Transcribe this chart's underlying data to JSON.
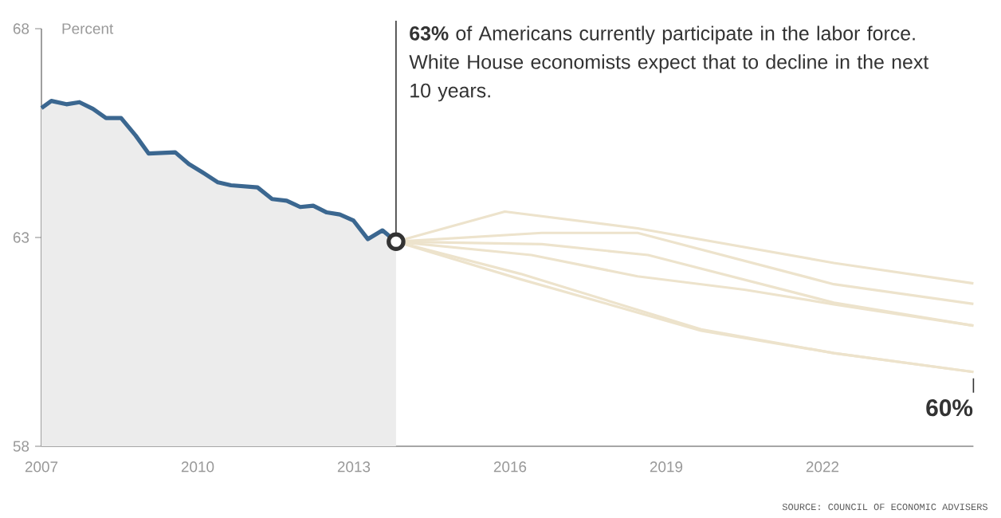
{
  "chart_data": {
    "type": "line",
    "ylabel": "Percent",
    "xlim": [
      2007,
      2024.9
    ],
    "ylim": [
      58,
      68
    ],
    "xticks": [
      2007,
      2010,
      2013,
      2016,
      2019,
      2022
    ],
    "yticks": [
      58,
      63,
      68
    ],
    "series": [
      {
        "type": "area",
        "color": "#3b6790",
        "x": [
          2007.0,
          2007.19,
          2007.48,
          2007.73,
          2007.99,
          2008.24,
          2008.53,
          2008.81,
          2009.06,
          2009.57,
          2009.83,
          2010.08,
          2010.39,
          2010.64,
          2011.15,
          2011.43,
          2011.71,
          2011.97,
          2012.22,
          2012.48,
          2012.73,
          2012.99,
          2013.27,
          2013.55,
          2013.81
        ],
        "values": [
          66.1,
          66.27,
          66.19,
          66.24,
          66.08,
          65.86,
          65.86,
          65.44,
          65.01,
          65.04,
          64.76,
          64.57,
          64.32,
          64.25,
          64.2,
          63.92,
          63.88,
          63.73,
          63.76,
          63.6,
          63.55,
          63.41,
          62.96,
          63.17,
          62.9
        ]
      },
      {
        "color": "#ede3cc",
        "x": [
          2013.81,
          2015.9,
          2018.45,
          2022.22,
          2024.9
        ],
        "values": [
          62.9,
          63.62,
          63.22,
          62.39,
          61.9
        ]
      },
      {
        "color": "#ede3cc",
        "x": [
          2013.81,
          2016.61,
          2018.45,
          2022.22,
          2024.9
        ],
        "values": [
          62.9,
          63.11,
          63.11,
          61.88,
          61.41
        ]
      },
      {
        "color": "#ede3cc",
        "x": [
          2013.81,
          2016.61,
          2018.65,
          2022.22,
          2024.9
        ],
        "values": [
          62.9,
          62.84,
          62.58,
          61.44,
          60.89
        ]
      },
      {
        "color": "#ede3cc",
        "x": [
          2013.81,
          2016.41,
          2018.45,
          2020.5,
          2022.22,
          2024.9
        ],
        "values": [
          62.9,
          62.58,
          62.07,
          61.75,
          61.4,
          60.89
        ]
      },
      {
        "color": "#ede3cc",
        "x": [
          2013.81,
          2016.2,
          2019.67,
          2022.22,
          2024.9
        ],
        "values": [
          62.9,
          62.13,
          60.8,
          60.23,
          59.78
        ]
      },
      {
        "color": "#ede3cc",
        "x": [
          2013.81,
          2016.2,
          2019.67,
          2022.22,
          2024.9
        ],
        "values": [
          62.9,
          62.0,
          60.77,
          60.23,
          59.78
        ]
      }
    ],
    "annotations": [
      {
        "text": "**63%** of Americans currently participate in the labor force. White House economists expect that to decline in the next 10 years.",
        "x": 2013.81,
        "y": 62.9
      },
      {
        "text": "60%",
        "x": 2024.9,
        "y": 59.78
      },
      "SOURCE: COUNCIL OF ECONOMIC ADVISERS"
    ]
  }
}
